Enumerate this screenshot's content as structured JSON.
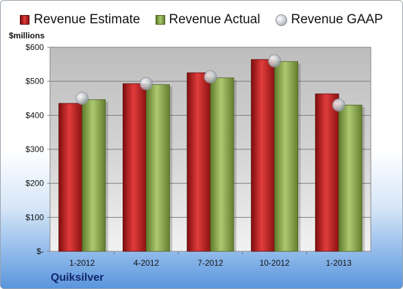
{
  "legend": {
    "estimate": "Revenue Estimate",
    "actual": "Revenue Actual",
    "gaap": "Revenue GAAP"
  },
  "unit_label": "$millions",
  "company": "Quiksilver",
  "colors": {
    "estimate": "#c8262b",
    "actual": "#8fb24e",
    "gaap": "#c9ccd2"
  },
  "chart_data": {
    "type": "bar",
    "categories": [
      "1-2012",
      "4-2012",
      "7-2012",
      "10-2012",
      "1-2013"
    ],
    "series": [
      {
        "name": "Revenue Estimate",
        "values": [
          435,
          493,
          525,
          564,
          463
        ]
      },
      {
        "name": "Revenue Actual",
        "values": [
          446,
          490,
          510,
          558,
          430
        ]
      },
      {
        "name": "Revenue GAAP",
        "values": [
          450,
          493,
          513,
          560,
          430
        ]
      }
    ],
    "ylim": [
      0,
      600
    ],
    "yticks": [
      0,
      100,
      200,
      300,
      400,
      500,
      600
    ],
    "ytick_labels": [
      "$-",
      "$100",
      "$200",
      "$300",
      "$400",
      "$500",
      "$600"
    ],
    "ylabel": "$millions",
    "legend_position": "top",
    "grid": true
  }
}
